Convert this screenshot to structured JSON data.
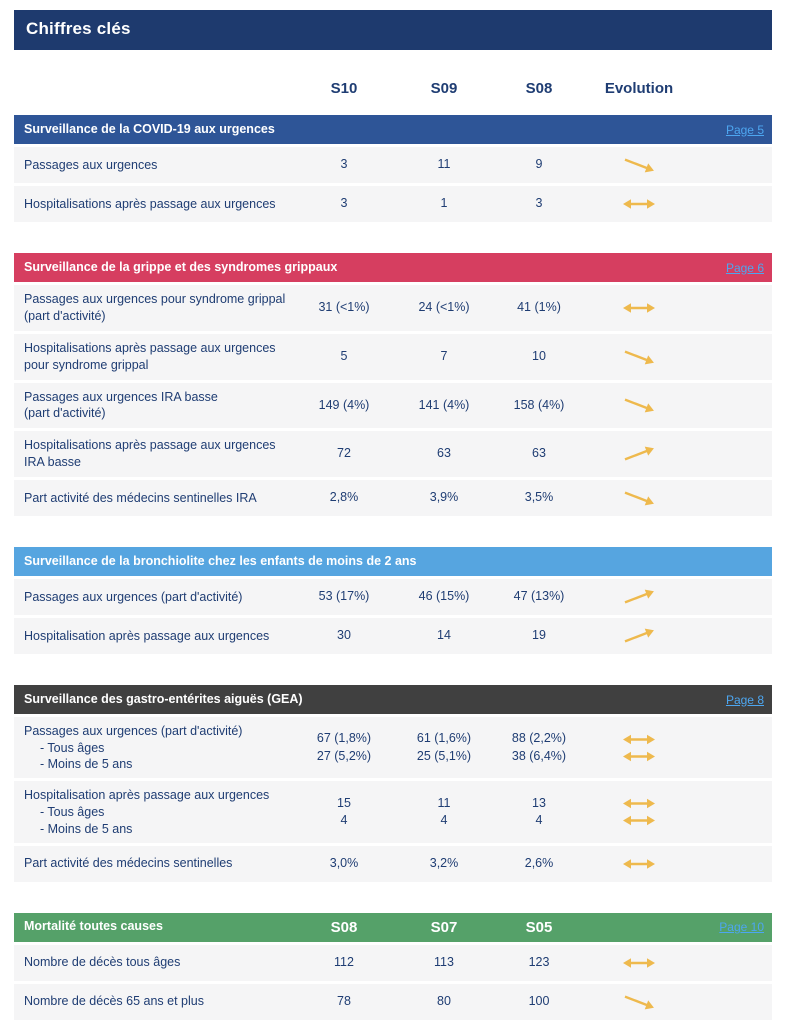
{
  "theme": {
    "navy": "#1e3a6e",
    "text": "#1f3d73",
    "row_bg": "#f5f5f6",
    "link": "#4da6f0",
    "arrow": "#eeb94d"
  },
  "banner": {
    "title": "Chiffres clés"
  },
  "columns": {
    "week1": "S10",
    "week2": "S09",
    "week3": "S08",
    "evolution": "Evolution"
  },
  "sections": [
    {
      "id": "covid",
      "color": "#2e5597",
      "title": "Surveillance de la COVID-19 aux urgences",
      "page_link": "Page 5",
      "rows": [
        {
          "label": "Passages aux urgences",
          "values": [
            "3",
            "11",
            "9"
          ],
          "trend": "down"
        },
        {
          "label": "Hospitalisations après passage aux urgences",
          "values": [
            "3",
            "1",
            "3"
          ],
          "trend": "stable"
        }
      ]
    },
    {
      "id": "grippe",
      "color": "#d63e60",
      "title": "Surveillance de la grippe et des syndromes grippaux",
      "page_link": "Page 6",
      "rows": [
        {
          "label": "Passages aux urgences pour syndrome grippal\n(part d'activité)",
          "values": [
            "31 (<1%)",
            "24 (<1%)",
            "41 (1%)"
          ],
          "trend": "stable"
        },
        {
          "label": "Hospitalisations après passage aux urgences\npour syndrome grippal",
          "values": [
            "5",
            "7",
            "10"
          ],
          "trend": "down"
        },
        {
          "label": "Passages aux urgences IRA basse\n(part d'activité)",
          "values": [
            "149 (4%)",
            "141 (4%)",
            "158 (4%)"
          ],
          "trend": "down"
        },
        {
          "label": "Hospitalisations après passage aux urgences\nIRA basse",
          "values": [
            "72",
            "63",
            "63"
          ],
          "trend": "up"
        },
        {
          "label": "Part activité des médecins sentinelles IRA",
          "values": [
            "2,8%",
            "3,9%",
            "3,5%"
          ],
          "trend": "down"
        }
      ]
    },
    {
      "id": "bronchiolite",
      "color": "#56a5e0",
      "title": "Surveillance de la bronchiolite chez les enfants de moins de 2 ans",
      "rows": [
        {
          "label": "Passages aux urgences (part d'activité)",
          "values": [
            "53 (17%)",
            "46 (15%)",
            "47 (13%)"
          ],
          "trend": "up"
        },
        {
          "label": "Hospitalisation après passage aux urgences",
          "values": [
            "30",
            "14",
            "19"
          ],
          "trend": "up"
        }
      ]
    },
    {
      "id": "gea",
      "color": "#404040",
      "title": "Surveillance des gastro-entérites aiguës (GEA)",
      "page_link": "Page 8",
      "rows": [
        {
          "label": "Passages aux urgences (part d'activité)",
          "sublabels": [
            "- Tous âges",
            "- Moins de 5 ans"
          ],
          "values": [
            "67 (1,8%)\n27 (5,2%)",
            "61 (1,6%)\n25 (5,1%)",
            "88 (2,2%)\n38 (6,4%)"
          ],
          "trend": "stable2"
        },
        {
          "label": "Hospitalisation après passage aux urgences",
          "sublabels": [
            "- Tous âges",
            "- Moins de 5 ans"
          ],
          "values": [
            "15\n4",
            "11\n4",
            "13\n4"
          ],
          "trend": "stable2"
        },
        {
          "label": "Part activité des médecins sentinelles",
          "values": [
            "3,0%",
            "3,2%",
            "2,6%"
          ],
          "trend": "stable"
        }
      ]
    },
    {
      "id": "mortalite",
      "color": "#55a169",
      "title": "Mortalité toutes causes",
      "page_link": "Page 10",
      "header_cols": [
        "S08",
        "S07",
        "S05"
      ],
      "rows": [
        {
          "label": "Nombre de décès tous âges",
          "values": [
            "112",
            "113",
            "123"
          ],
          "trend": "stable"
        },
        {
          "label": "Nombre de décès 65 ans et plus",
          "values": [
            "78",
            "80",
            "100"
          ],
          "trend": "down"
        }
      ]
    }
  ]
}
